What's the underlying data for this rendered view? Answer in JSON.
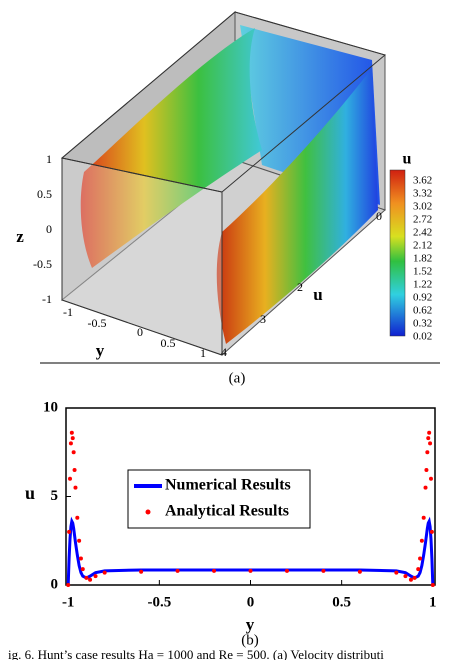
{
  "figure_a": {
    "z_label": "z",
    "z_ticks": [
      1,
      0.5,
      0,
      -0.5,
      -1
    ],
    "y_label": "y",
    "y_ticks": [
      -1,
      -0.5,
      0,
      0.5,
      1
    ],
    "u_label": "u",
    "u_ticks": [
      0,
      2,
      3,
      4
    ],
    "colorbar_title": "u",
    "colorbar_ticks": [
      3.62,
      3.32,
      3.02,
      2.72,
      2.42,
      2.12,
      1.82,
      1.52,
      1.22,
      0.92,
      0.62,
      0.32,
      0.02
    ],
    "panel_label": "(a)"
  },
  "chart_data": {
    "type": "line",
    "xlabel": "y",
    "ylabel": "u",
    "panel_label": "(b)",
    "x": [
      -1,
      -0.995,
      -0.99,
      -0.985,
      -0.98,
      -0.975,
      -0.97,
      -0.965,
      -0.96,
      -0.95,
      -0.94,
      -0.93,
      -0.92,
      -0.9,
      -0.88,
      -0.85,
      -0.8,
      -0.6,
      -0.4,
      -0.2,
      0,
      0.2,
      0.4,
      0.6,
      0.8,
      0.85,
      0.88,
      0.9,
      0.92,
      0.93,
      0.94,
      0.95,
      0.96,
      0.965,
      0.97,
      0.975,
      0.98,
      0.985,
      0.99,
      0.995,
      1
    ],
    "series": [
      {
        "name": "Numerical Results",
        "color": "#0000ff",
        "style": "line",
        "values": [
          0,
          1.5,
          2.6,
          3.3,
          3.6,
          3.5,
          3.2,
          2.8,
          2.4,
          1.7,
          1.1,
          0.7,
          0.5,
          0.4,
          0.5,
          0.7,
          0.8,
          0.85,
          0.85,
          0.85,
          0.85,
          0.85,
          0.85,
          0.85,
          0.8,
          0.7,
          0.5,
          0.4,
          0.5,
          0.7,
          1.1,
          1.7,
          2.4,
          2.8,
          3.2,
          3.5,
          3.6,
          3.3,
          2.6,
          1.5,
          0
        ]
      },
      {
        "name": "Analytical Results",
        "color": "#ff0000",
        "style": "dots",
        "values": [
          0,
          3,
          6,
          8,
          8.6,
          8.3,
          7.5,
          6.5,
          5.5,
          3.8,
          2.5,
          1.5,
          0.9,
          0.4,
          0.3,
          0.5,
          0.7,
          0.75,
          0.8,
          0.8,
          0.8,
          0.8,
          0.8,
          0.75,
          0.7,
          0.5,
          0.3,
          0.4,
          0.9,
          1.5,
          2.5,
          3.8,
          5.5,
          6.5,
          7.5,
          8.3,
          8.6,
          8,
          6,
          3,
          0
        ]
      }
    ],
    "xlim": [
      -1.012,
      1.012
    ],
    "ylim": [
      0,
      10
    ],
    "xticks": [
      -1,
      -0.5,
      0,
      0.5,
      1
    ],
    "yticks": [
      0,
      5,
      10
    ]
  },
  "caption": "ig. 6.   Hunt’s case results Ha = 1000 and Re = 500. (a) Velocity distributi"
}
